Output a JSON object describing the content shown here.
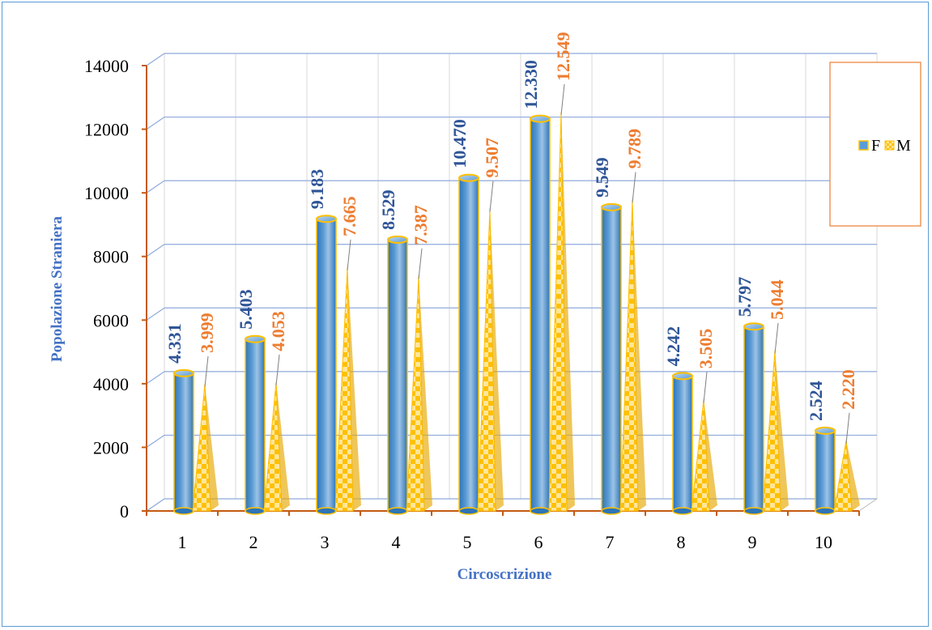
{
  "chart_data": {
    "type": "bar",
    "title": "",
    "xlabel": "Circoscrizione",
    "ylabel": "Popolazione Straniera",
    "categories": [
      "1",
      "2",
      "3",
      "4",
      "5",
      "6",
      "7",
      "8",
      "9",
      "10"
    ],
    "ylim": [
      0,
      14000
    ],
    "yticks": [
      0,
      2000,
      4000,
      6000,
      8000,
      10000,
      12000,
      14000
    ],
    "grid": true,
    "legend_position": "right",
    "series": [
      {
        "name": "F",
        "shape": "cylinder",
        "color": "#5b9bd5",
        "label_color": "#2f5597",
        "values": [
          4331,
          5403,
          9183,
          8529,
          10470,
          12330,
          9549,
          4242,
          5797,
          2524
        ],
        "labels": [
          "4.331",
          "5.403",
          "9.183",
          "8.529",
          "10.470",
          "12.330",
          "9.549",
          "4.242",
          "5.797",
          "2.524"
        ]
      },
      {
        "name": "M",
        "shape": "cone",
        "pattern": "yellow checker",
        "color": "#ffc000",
        "label_color": "#ed7d31",
        "values": [
          3999,
          4053,
          7665,
          7387,
          9507,
          12549,
          9789,
          3505,
          5044,
          2220
        ],
        "labels": [
          "3.999",
          "4.053",
          "7.665",
          "7.387",
          "9.507",
          "12.549",
          "9.789",
          "3.505",
          "5.044",
          "2.220"
        ]
      }
    ]
  }
}
